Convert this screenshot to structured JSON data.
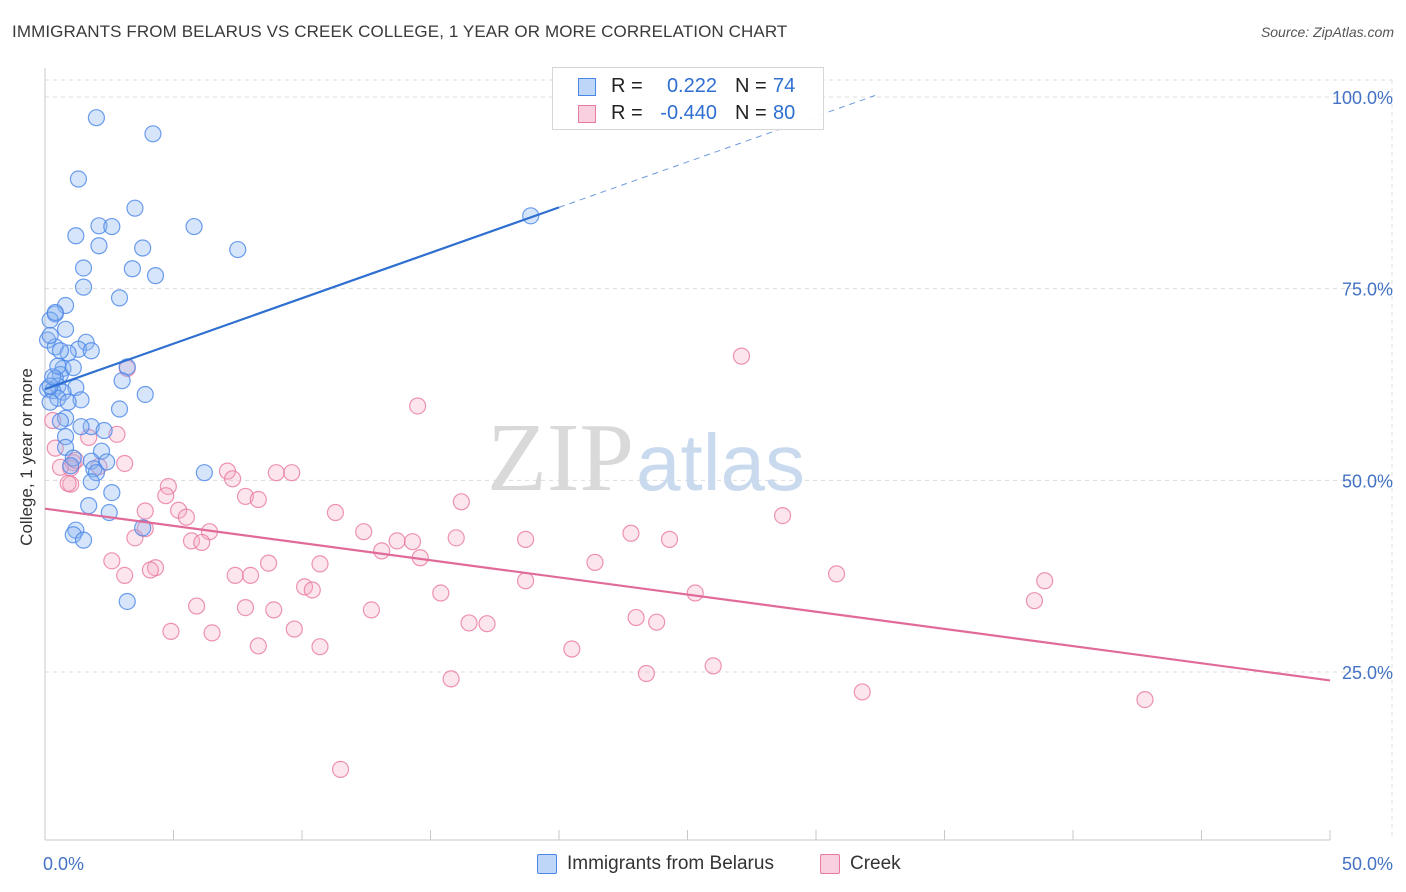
{
  "title": "IMMIGRANTS FROM BELARUS VS CREEK COLLEGE, 1 YEAR OR MORE CORRELATION CHART",
  "source": "Source: ZipAtlas.com",
  "watermark": {
    "zip": "ZIP",
    "atlas": "atlas"
  },
  "colors": {
    "blue": "#4a86e8",
    "blue_fill": "rgba(137,180,240,0.35)",
    "blue_line": "#2e6fd0",
    "pink": "#e8799f",
    "pink_fill": "rgba(244,170,196,0.30)",
    "pink_line": "#e06a98",
    "tick_text": "#4472c4",
    "grid": "#dcdcdc"
  },
  "stats": {
    "rows": [
      {
        "series": "Immigrants from Belarus",
        "r_label": "R =",
        "r_value": "0.222",
        "n_label": "N =",
        "n_value": "74"
      },
      {
        "series": "Creek",
        "r_label": "R =",
        "r_value": "-0.440",
        "n_label": "N =",
        "n_value": "80"
      }
    ]
  },
  "legend": {
    "items": [
      {
        "label": "Immigrants from Belarus"
      },
      {
        "label": "Creek"
      }
    ]
  },
  "chart_data": {
    "type": "scatter",
    "title": "IMMIGRANTS FROM BELARUS VS CREEK COLLEGE, 1 YEAR OR MORE CORRELATION CHART",
    "xlabel": "",
    "ylabel": "College, 1 year or more",
    "xlim": [
      0,
      50
    ],
    "ylim": [
      0,
      105
    ],
    "x_tick_labels": [
      "0.0%",
      "50.0%"
    ],
    "y_ticks": [
      25,
      50,
      75,
      100
    ],
    "y_tick_labels": [
      "25.0%",
      "50.0%",
      "75.0%",
      "100.0%"
    ],
    "grid": true,
    "legend_position": "bottom-center",
    "series": [
      {
        "name": "Immigrants from Belarus",
        "color": "blue",
        "trend": {
          "x0": 0,
          "y0": 61.9,
          "x1": 20,
          "y1": 85.6,
          "dashed_to_x": 32.3,
          "dashed_to_y": 100.2
        },
        "points": [
          [
            2.0,
            97.3
          ],
          [
            4.2,
            95.2
          ],
          [
            1.3,
            89.3
          ],
          [
            3.5,
            85.5
          ],
          [
            5.8,
            83.1
          ],
          [
            1.2,
            81.9
          ],
          [
            2.1,
            83.2
          ],
          [
            2.6,
            83.1
          ],
          [
            3.8,
            80.3
          ],
          [
            7.5,
            80.1
          ],
          [
            2.1,
            80.6
          ],
          [
            1.5,
            77.7
          ],
          [
            3.4,
            77.6
          ],
          [
            4.3,
            76.7
          ],
          [
            1.5,
            75.2
          ],
          [
            2.9,
            73.8
          ],
          [
            0.8,
            72.8
          ],
          [
            0.4,
            71.7
          ],
          [
            0.2,
            70.9
          ],
          [
            0.8,
            69.7
          ],
          [
            0.1,
            68.3
          ],
          [
            1.6,
            68.0
          ],
          [
            0.4,
            67.4
          ],
          [
            1.3,
            67.1
          ],
          [
            1.8,
            66.9
          ],
          [
            0.9,
            66.6
          ],
          [
            3.2,
            64.8
          ],
          [
            0.7,
            64.6
          ],
          [
            0.6,
            63.8
          ],
          [
            0.4,
            63.3
          ],
          [
            3.0,
            63.0
          ],
          [
            0.5,
            62.3
          ],
          [
            1.2,
            62.1
          ],
          [
            0.1,
            61.9
          ],
          [
            0.3,
            61.7
          ],
          [
            0.7,
            61.5
          ],
          [
            0.5,
            60.7
          ],
          [
            1.4,
            60.5
          ],
          [
            3.9,
            61.2
          ],
          [
            0.2,
            60.2
          ],
          [
            0.9,
            60.2
          ],
          [
            2.9,
            59.3
          ],
          [
            0.8,
            58.1
          ],
          [
            0.6,
            57.7
          ],
          [
            1.8,
            57.0
          ],
          [
            1.4,
            57.0
          ],
          [
            2.3,
            56.5
          ],
          [
            0.8,
            55.7
          ],
          [
            0.8,
            54.3
          ],
          [
            2.2,
            53.8
          ],
          [
            1.1,
            52.9
          ],
          [
            1.8,
            52.5
          ],
          [
            2.4,
            52.4
          ],
          [
            1.0,
            51.9
          ],
          [
            1.9,
            51.5
          ],
          [
            2.0,
            51.0
          ],
          [
            6.2,
            51.0
          ],
          [
            1.8,
            49.8
          ],
          [
            2.6,
            48.4
          ],
          [
            1.7,
            46.7
          ],
          [
            2.5,
            45.8
          ],
          [
            3.8,
            43.8
          ],
          [
            1.2,
            43.5
          ],
          [
            1.1,
            42.9
          ],
          [
            1.5,
            42.2
          ],
          [
            3.2,
            34.2
          ],
          [
            18.9,
            84.5
          ],
          [
            0.2,
            62.3
          ],
          [
            0.3,
            63.5
          ],
          [
            0.5,
            64.9
          ],
          [
            1.1,
            64.7
          ],
          [
            0.6,
            66.9
          ],
          [
            0.2,
            68.9
          ],
          [
            0.4,
            71.9
          ]
        ]
      },
      {
        "name": "Creek",
        "color": "pink",
        "trend": {
          "x0": 0,
          "y0": 46.3,
          "x1": 50,
          "y1": 23.9
        },
        "points": [
          [
            27.1,
            66.2
          ],
          [
            3.2,
            64.6
          ],
          [
            14.5,
            59.7
          ],
          [
            0.3,
            57.8
          ],
          [
            2.8,
            56.0
          ],
          [
            1.7,
            55.6
          ],
          [
            0.4,
            54.2
          ],
          [
            1.1,
            52.3
          ],
          [
            1.0,
            51.6
          ],
          [
            2.1,
            51.8
          ],
          [
            3.1,
            52.2
          ],
          [
            1.2,
            52.6
          ],
          [
            0.6,
            51.7
          ],
          [
            7.1,
            51.2
          ],
          [
            9.0,
            51.0
          ],
          [
            9.6,
            51.0
          ],
          [
            7.3,
            50.2
          ],
          [
            1.0,
            49.5
          ],
          [
            4.8,
            49.2
          ],
          [
            7.8,
            47.9
          ],
          [
            8.3,
            47.5
          ],
          [
            4.7,
            48.0
          ],
          [
            16.2,
            47.2
          ],
          [
            3.9,
            46.0
          ],
          [
            5.2,
            46.1
          ],
          [
            11.3,
            45.8
          ],
          [
            28.7,
            45.4
          ],
          [
            5.5,
            45.2
          ],
          [
            3.9,
            43.7
          ],
          [
            6.4,
            43.3
          ],
          [
            12.4,
            43.3
          ],
          [
            16.0,
            42.5
          ],
          [
            22.8,
            43.1
          ],
          [
            24.3,
            42.3
          ],
          [
            18.7,
            42.3
          ],
          [
            3.5,
            42.5
          ],
          [
            5.7,
            42.1
          ],
          [
            6.1,
            41.9
          ],
          [
            13.7,
            42.1
          ],
          [
            14.3,
            42.0
          ],
          [
            13.1,
            40.8
          ],
          [
            14.6,
            39.9
          ],
          [
            2.6,
            39.5
          ],
          [
            8.7,
            39.2
          ],
          [
            10.7,
            39.1
          ],
          [
            21.4,
            39.3
          ],
          [
            4.3,
            38.6
          ],
          [
            4.1,
            38.3
          ],
          [
            3.1,
            37.6
          ],
          [
            7.4,
            37.6
          ],
          [
            30.8,
            37.8
          ],
          [
            10.1,
            36.1
          ],
          [
            18.7,
            36.9
          ],
          [
            10.4,
            35.7
          ],
          [
            15.4,
            35.3
          ],
          [
            25.3,
            35.3
          ],
          [
            38.9,
            36.9
          ],
          [
            7.8,
            33.4
          ],
          [
            8.9,
            33.1
          ],
          [
            5.9,
            33.6
          ],
          [
            12.7,
            33.1
          ],
          [
            23.0,
            32.1
          ],
          [
            38.5,
            34.3
          ],
          [
            16.5,
            31.4
          ],
          [
            17.2,
            31.3
          ],
          [
            23.8,
            31.5
          ],
          [
            4.9,
            30.3
          ],
          [
            6.5,
            30.1
          ],
          [
            9.7,
            30.6
          ],
          [
            8.3,
            28.4
          ],
          [
            10.7,
            28.3
          ],
          [
            20.5,
            28.0
          ],
          [
            26.0,
            25.8
          ],
          [
            15.8,
            24.1
          ],
          [
            23.4,
            24.8
          ],
          [
            31.8,
            22.4
          ],
          [
            42.8,
            21.4
          ],
          [
            11.5,
            12.3
          ],
          [
            0.9,
            49.6
          ],
          [
            8.0,
            37.6
          ]
        ]
      }
    ]
  }
}
